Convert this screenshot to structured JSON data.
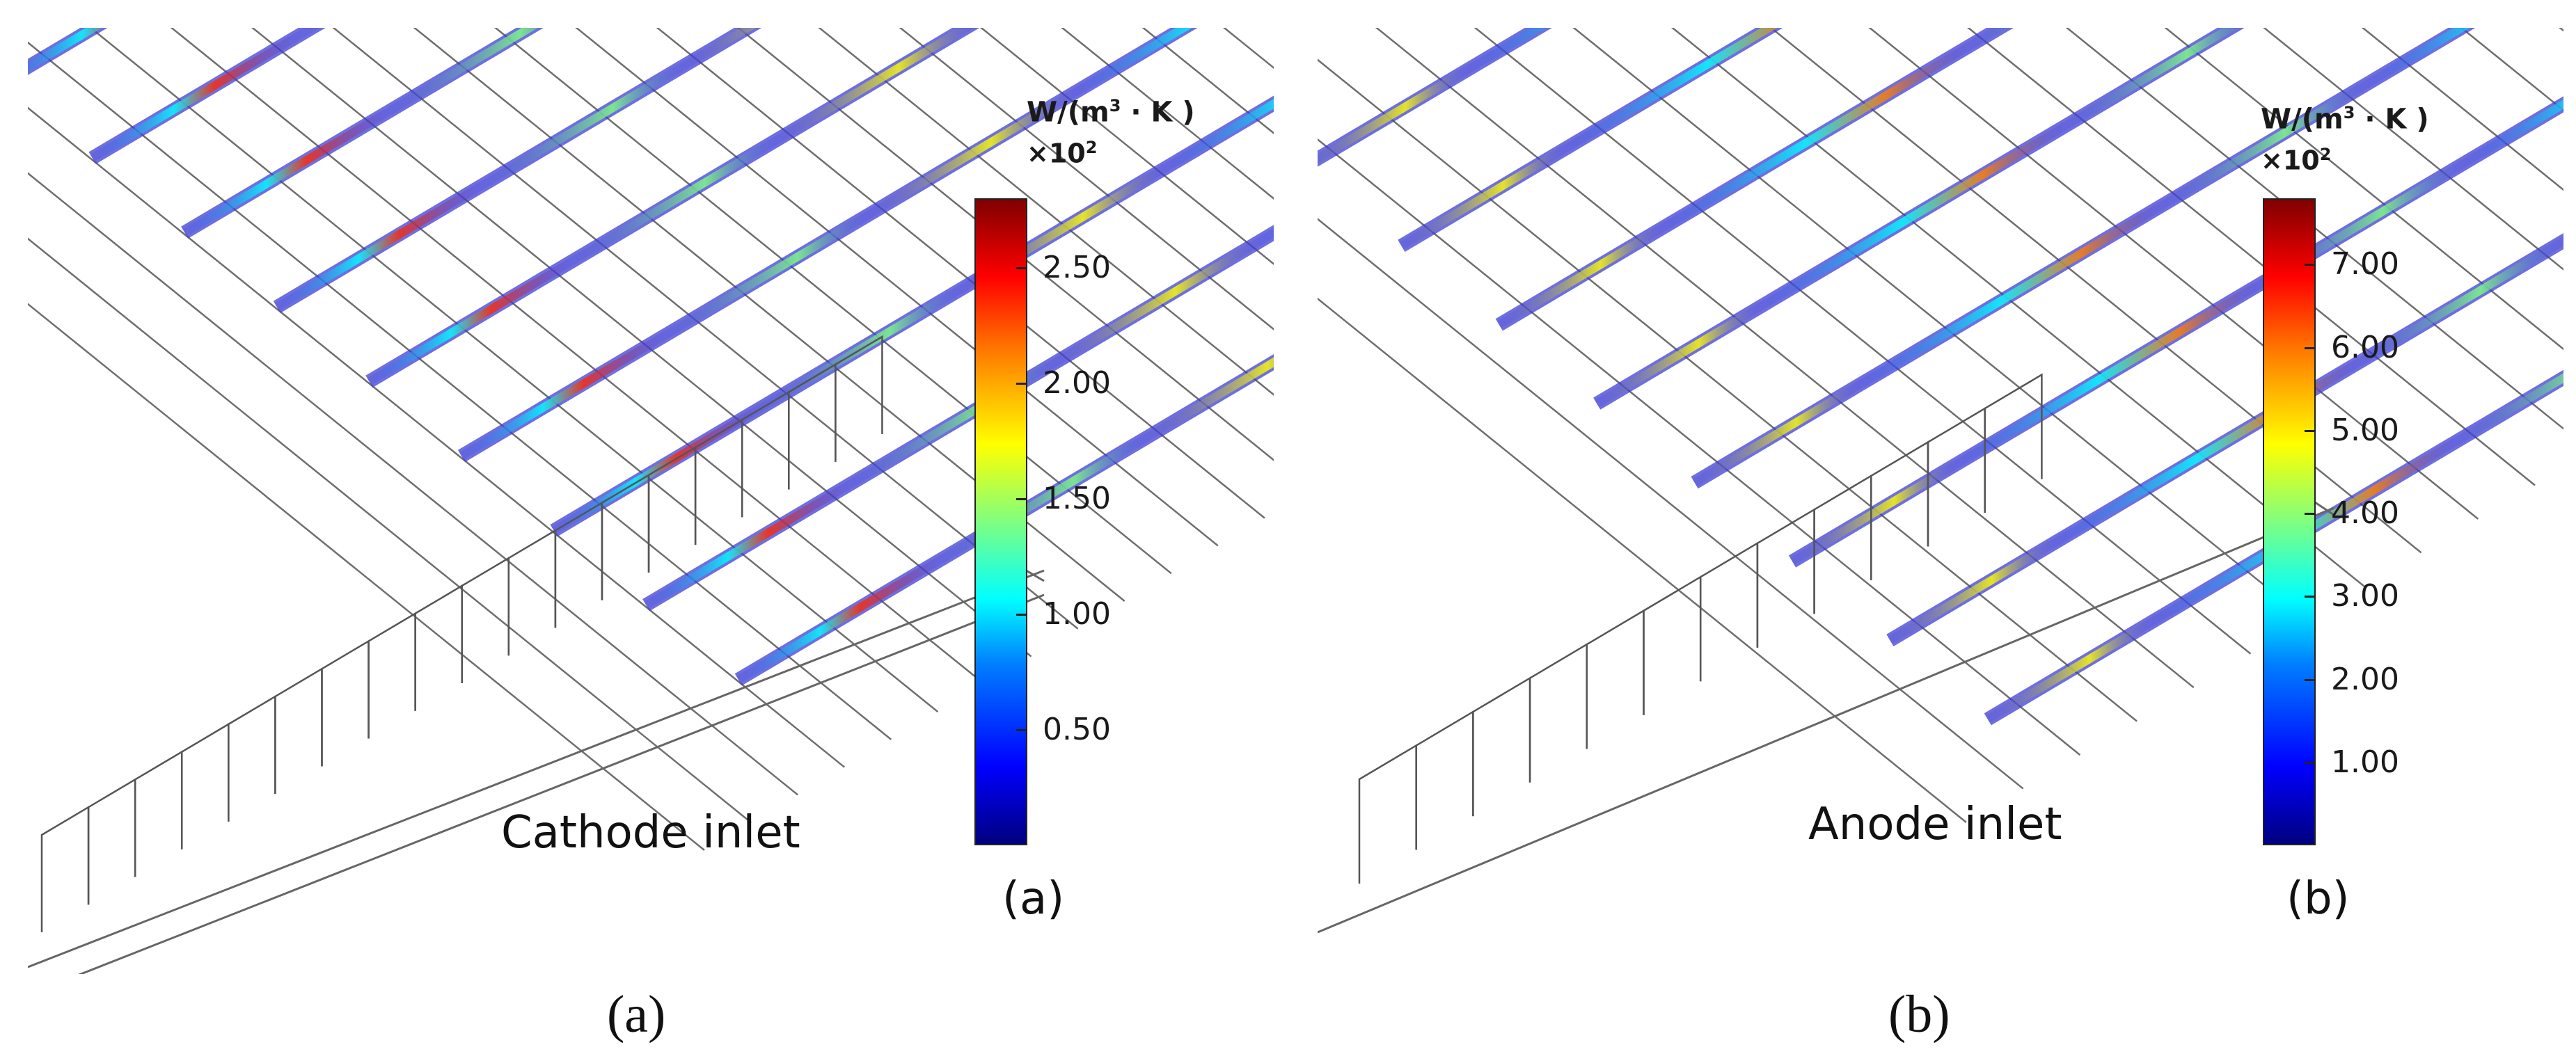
{
  "panels": [
    {
      "id": "a",
      "inlet_label": "Cathode inlet",
      "inner_letter": "(a)",
      "caption": "(a)",
      "unit_base": "W/(m",
      "unit_exp": "3",
      "unit_tail": " · K )",
      "scale_base": "×10",
      "scale_exp": "2",
      "colorbar_ticks": [
        "2.50",
        "2.00",
        "1.50",
        "1.00",
        "0.50"
      ],
      "colorbar_range": [
        0.0,
        2.8
      ]
    },
    {
      "id": "b",
      "inlet_label": "Anode inlet",
      "inner_letter": "(b)",
      "caption": "(b)",
      "unit_base": "W/(m",
      "unit_exp": "3",
      "unit_tail": " · K )",
      "scale_base": "×10",
      "scale_exp": "2",
      "colorbar_ticks": [
        "7.00",
        "6.00",
        "5.00",
        "4.00",
        "3.00",
        "2.00",
        "1.00"
      ],
      "colorbar_range": [
        0.0,
        7.8
      ]
    }
  ],
  "colormap": [
    "#00007f",
    "#0000ff",
    "#007fff",
    "#00ffff",
    "#7fff7f",
    "#ffff00",
    "#ff7f00",
    "#ff0000",
    "#7f0000"
  ]
}
